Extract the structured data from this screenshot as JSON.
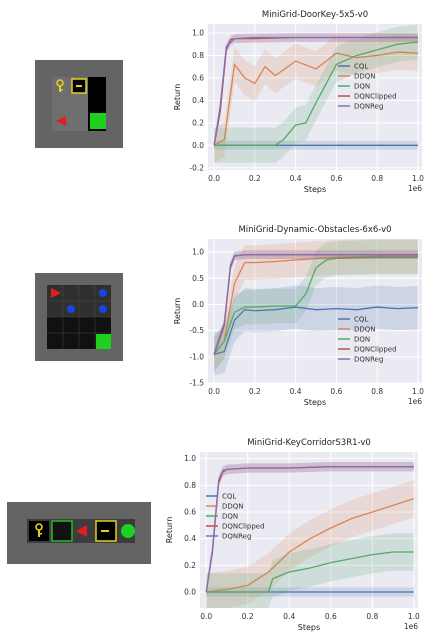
{
  "environments": [
    {
      "name": "DoorKey-5x5"
    },
    {
      "name": "Dynamic-Obstacles-6x6"
    },
    {
      "name": "KeyCorridorS3R1"
    }
  ],
  "colors": {
    "CQL": "#4c72b0",
    "DDQN": "#dd8452",
    "DQN": "#55a868",
    "DQNClipped": "#c44e52",
    "DQNReg": "#8172b3",
    "grid_bg": "#eaeaf2"
  },
  "chart_data": [
    {
      "type": "line",
      "title": "MiniGrid-DoorKey-5x5-v0",
      "xlabel": "Steps",
      "ylabel": "Return",
      "x_multiplier": "1e6",
      "xlim": [
        -0.03,
        1.02
      ],
      "ylim": [
        -0.22,
        1.08
      ],
      "xticks": [
        "0.0",
        "0.2",
        "0.4",
        "0.6",
        "0.8",
        "1.0"
      ],
      "yticks": [
        "-0.2",
        "0.0",
        "0.2",
        "0.4",
        "0.6",
        "0.8",
        "1.0"
      ],
      "legend": "right",
      "series": [
        {
          "name": "CQL",
          "x": [
            0,
            0.05,
            0.1,
            0.3,
            0.5,
            0.7,
            0.9,
            1.0
          ],
          "values": [
            0.0,
            0.0,
            0.0,
            0.0,
            0.0,
            0.0,
            0.0,
            0.0
          ]
        },
        {
          "name": "DDQN",
          "x": [
            0,
            0.05,
            0.08,
            0.1,
            0.15,
            0.2,
            0.25,
            0.3,
            0.4,
            0.5,
            0.6,
            0.7,
            0.8,
            0.9,
            1.0
          ],
          "values": [
            0.0,
            0.05,
            0.45,
            0.72,
            0.6,
            0.55,
            0.7,
            0.62,
            0.75,
            0.68,
            0.82,
            0.78,
            0.8,
            0.83,
            0.82
          ]
        },
        {
          "name": "DQN",
          "x": [
            0,
            0.1,
            0.2,
            0.3,
            0.34,
            0.4,
            0.45,
            0.5,
            0.55,
            0.6,
            0.7,
            0.8,
            0.9,
            1.0
          ],
          "values": [
            0.0,
            0.0,
            0.0,
            0.0,
            0.05,
            0.18,
            0.2,
            0.38,
            0.55,
            0.72,
            0.8,
            0.85,
            0.9,
            0.92
          ]
        },
        {
          "name": "DQNClipped",
          "x": [
            0,
            0.03,
            0.06,
            0.08,
            0.1,
            0.2,
            0.4,
            0.6,
            0.8,
            1.0
          ],
          "values": [
            0.0,
            0.3,
            0.85,
            0.94,
            0.95,
            0.95,
            0.96,
            0.96,
            0.96,
            0.96
          ]
        },
        {
          "name": "DQNReg",
          "x": [
            0,
            0.03,
            0.06,
            0.1,
            0.2,
            0.4,
            0.6,
            0.8,
            1.0
          ],
          "values": [
            0.0,
            0.35,
            0.88,
            0.95,
            0.96,
            0.96,
            0.96,
            0.96,
            0.96
          ]
        }
      ]
    },
    {
      "type": "line",
      "title": "MiniGrid-Dynamic-Obstacles-6x6-v0",
      "xlabel": "Steps",
      "ylabel": "Return",
      "x_multiplier": "1e6",
      "xlim": [
        -0.03,
        1.02
      ],
      "ylim": [
        -1.5,
        1.25
      ],
      "xticks": [
        "0.0",
        "0.2",
        "0.4",
        "0.6",
        "0.8",
        "1.0"
      ],
      "yticks": [
        "-1.5",
        "-1.0",
        "-0.5",
        "0.0",
        "0.5",
        "1.0"
      ],
      "legend": "bottom-right",
      "series": [
        {
          "name": "CQL",
          "x": [
            0,
            0.05,
            0.1,
            0.15,
            0.2,
            0.3,
            0.4,
            0.5,
            0.6,
            0.7,
            0.8,
            0.9,
            1.0
          ],
          "values": [
            -0.95,
            -0.9,
            -0.3,
            -0.1,
            -0.12,
            -0.1,
            -0.05,
            -0.1,
            -0.08,
            -0.1,
            -0.05,
            -0.08,
            -0.06
          ]
        },
        {
          "name": "DDQN",
          "x": [
            0,
            0.05,
            0.1,
            0.15,
            0.2,
            0.3,
            0.4,
            0.6,
            0.8,
            1.0
          ],
          "values": [
            -0.95,
            -0.7,
            0.4,
            0.8,
            0.8,
            0.82,
            0.85,
            0.9,
            0.92,
            0.92
          ]
        },
        {
          "name": "DQN",
          "x": [
            0,
            0.05,
            0.1,
            0.15,
            0.2,
            0.3,
            0.4,
            0.45,
            0.5,
            0.55,
            0.6,
            0.8,
            1.0
          ],
          "values": [
            -0.95,
            -0.7,
            -0.15,
            -0.05,
            -0.05,
            -0.03,
            -0.03,
            0.2,
            0.7,
            0.85,
            0.88,
            0.9,
            0.9
          ]
        },
        {
          "name": "DQNClipped",
          "x": [
            0,
            0.05,
            0.08,
            0.1,
            0.15,
            0.3,
            0.5,
            0.8,
            1.0
          ],
          "values": [
            -0.95,
            -0.4,
            0.7,
            0.92,
            0.95,
            0.95,
            0.95,
            0.95,
            0.95
          ]
        },
        {
          "name": "DQNReg",
          "x": [
            0,
            0.05,
            0.08,
            0.1,
            0.15,
            0.3,
            0.5,
            0.8,
            1.0
          ],
          "values": [
            -0.95,
            -0.35,
            0.75,
            0.93,
            0.95,
            0.95,
            0.95,
            0.95,
            0.95
          ]
        }
      ]
    },
    {
      "type": "line",
      "title": "MiniGrid-KeyCorridorS3R1-v0",
      "xlabel": "Steps",
      "ylabel": "Return",
      "x_multiplier": "1e6",
      "xlim": [
        -0.03,
        1.02
      ],
      "ylim": [
        -0.12,
        1.05
      ],
      "xticks": [
        "0.0",
        "0.2",
        "0.4",
        "0.6",
        "0.8",
        "1.0"
      ],
      "yticks": [
        "0.0",
        "0.2",
        "0.4",
        "0.6",
        "0.8",
        "1.0"
      ],
      "legend": "left",
      "series": [
        {
          "name": "CQL",
          "x": [
            0,
            0.1,
            0.3,
            0.5,
            0.7,
            0.9,
            1.0
          ],
          "values": [
            0.0,
            0.0,
            0.0,
            0.0,
            0.0,
            0.0,
            0.0
          ]
        },
        {
          "name": "DDQN",
          "x": [
            0,
            0.1,
            0.2,
            0.3,
            0.4,
            0.5,
            0.6,
            0.7,
            0.8,
            0.9,
            1.0
          ],
          "values": [
            0.0,
            0.02,
            0.05,
            0.15,
            0.3,
            0.4,
            0.48,
            0.55,
            0.6,
            0.65,
            0.7
          ]
        },
        {
          "name": "DQN",
          "x": [
            0,
            0.1,
            0.2,
            0.3,
            0.32,
            0.4,
            0.5,
            0.6,
            0.7,
            0.8,
            0.9,
            1.0
          ],
          "values": [
            0.0,
            0.0,
            0.0,
            0.0,
            0.1,
            0.15,
            0.18,
            0.22,
            0.25,
            0.28,
            0.3,
            0.3
          ]
        },
        {
          "name": "DQNClipped",
          "x": [
            0,
            0.03,
            0.06,
            0.08,
            0.1,
            0.2,
            0.4,
            0.6,
            0.8,
            1.0
          ],
          "values": [
            0.0,
            0.3,
            0.82,
            0.9,
            0.92,
            0.93,
            0.93,
            0.94,
            0.94,
            0.94
          ]
        },
        {
          "name": "DQNReg",
          "x": [
            0,
            0.03,
            0.06,
            0.08,
            0.1,
            0.2,
            0.4,
            0.6,
            0.8,
            1.0
          ],
          "values": [
            0.0,
            0.32,
            0.84,
            0.91,
            0.92,
            0.93,
            0.93,
            0.94,
            0.94,
            0.94
          ]
        }
      ]
    }
  ]
}
